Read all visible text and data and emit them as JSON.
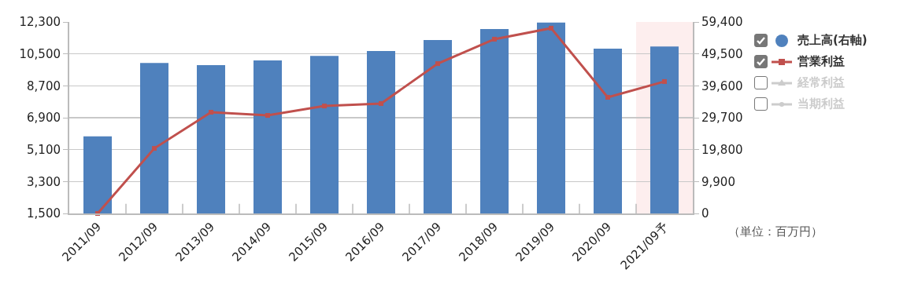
{
  "chart_data": {
    "type": "bar",
    "categories": [
      "2011/09",
      "2012/09",
      "2013/09",
      "2014/09",
      "2015/09",
      "2016/09",
      "2017/09",
      "2018/09",
      "2019/09",
      "2020/09",
      "2021/09予"
    ],
    "series": [
      {
        "name": "売上高(右軸)",
        "axis": "y2",
        "color": "#4f81bd",
        "values": [
          23900,
          46700,
          46000,
          47500,
          48900,
          50400,
          53800,
          57200,
          59200,
          51100,
          51800
        ]
      },
      {
        "name": "営業利益",
        "type": "line",
        "color": "#c0504d",
        "marker": "square",
        "values": [
          1500,
          5170,
          7210,
          7030,
          7560,
          7700,
          9950,
          11330,
          11950,
          8050,
          8940
        ]
      },
      {
        "name": "経常利益",
        "type": "line",
        "color": "#cccccc",
        "marker": "triangle",
        "values": [
          null,
          null,
          null,
          null,
          null,
          null,
          null,
          null,
          null,
          null,
          null
        ]
      },
      {
        "name": "当期利益",
        "type": "line",
        "color": "#cccccc",
        "marker": "circle",
        "values": [
          null,
          null,
          null,
          null,
          null,
          null,
          null,
          null,
          null,
          null,
          null
        ]
      }
    ],
    "ylim": [
      1500,
      12300
    ],
    "yticks": [
      {
        "value": 1500,
        "label": "1,500"
      },
      {
        "value": 3300,
        "label": "3,300"
      },
      {
        "value": 5100,
        "label": "5,100"
      },
      {
        "value": 6900,
        "label": "6,900"
      },
      {
        "value": 8700,
        "label": "8,700"
      },
      {
        "value": 10500,
        "label": "10,500"
      },
      {
        "value": 12300,
        "label": "12,300"
      }
    ],
    "y2lim": [
      0,
      59400
    ],
    "y2ticks": [
      0,
      {
        "value": 9900,
        "label": "9,900"
      },
      {
        "value": 19800,
        "label": "19,800"
      },
      {
        "value": 29700,
        "label": "29,700"
      },
      {
        "value": 39600,
        "label": "39,600"
      },
      {
        "value": 49500,
        "label": "49,500"
      },
      {
        "value": 59400,
        "label": "59,400"
      }
    ],
    "bands": [
      {
        "axis": "x",
        "from": "2021/09予",
        "to": "2021/09予",
        "color": "#fdeeee"
      }
    ],
    "annotations": [
      "（単位：百万円）"
    ],
    "grid": "y",
    "legend": "top right",
    "line_style": "solid"
  }
}
